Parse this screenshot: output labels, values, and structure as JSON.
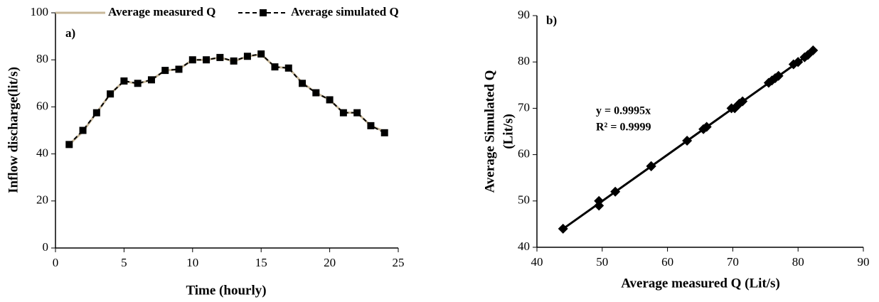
{
  "chart_data": [
    {
      "type": "line",
      "title": "a)",
      "x_label": "Time (hourly)",
      "y_label": "Inflow discharge(lit/s)",
      "x": [
        1,
        2,
        3,
        4,
        5,
        6,
        7,
        8,
        9,
        10,
        11,
        12,
        13,
        14,
        15,
        16,
        17,
        18,
        19,
        20,
        21,
        22,
        23,
        24
      ],
      "series": [
        {
          "name": "Average measured Q",
          "color": "#c8b89a",
          "values": [
            44,
            49.5,
            57.5,
            65.5,
            71,
            69.8,
            71.5,
            75.5,
            76,
            80,
            80,
            81,
            79.3,
            81.5,
            82.3,
            77,
            76.5,
            70.3,
            66,
            63,
            57.5,
            57.5,
            52,
            49.5
          ]
        },
        {
          "name": "Average simulated Q",
          "color": "#000000",
          "values": [
            44,
            50,
            57.5,
            65.5,
            71,
            70,
            71.5,
            75.5,
            76,
            80,
            80,
            81,
            79.5,
            81.5,
            82.5,
            77,
            76.5,
            70,
            66,
            63,
            57.5,
            57.5,
            52,
            49
          ]
        }
      ],
      "xlim": [
        0,
        25
      ],
      "xticks": [
        0,
        5,
        10,
        15,
        20,
        25
      ],
      "ylim": [
        0,
        100
      ],
      "yticks": [
        0,
        20,
        40,
        60,
        80,
        100
      ]
    },
    {
      "type": "scatter",
      "title": "b)",
      "x_label": "Average measured Q (Lit/s)",
      "y_label": [
        "Average Simulated Q",
        "(Lit/s)"
      ],
      "x": [
        44,
        49.5,
        57.5,
        65.5,
        71,
        69.8,
        71.5,
        75.5,
        76,
        80,
        80,
        81,
        79.3,
        81.5,
        82.3,
        77,
        76.5,
        70.3,
        66,
        63,
        57.5,
        57.5,
        52,
        49.5
      ],
      "values": [
        44,
        50,
        57.5,
        65.5,
        71,
        70,
        71.5,
        75.5,
        76,
        80,
        80,
        81,
        79.5,
        81.5,
        82.5,
        77,
        76.5,
        70,
        66,
        63,
        57.5,
        57.5,
        52,
        49
      ],
      "color": "#000000",
      "trendline": {
        "x": [
          44,
          82.5
        ],
        "y": [
          43.98,
          82.46
        ]
      },
      "annotations": [
        "y = 0.9995x",
        "R² = 0.9999"
      ],
      "xlim": [
        40,
        90
      ],
      "xticks": [
        40,
        50,
        60,
        70,
        80,
        90
      ],
      "ylim": [
        40,
        90
      ],
      "yticks": [
        40,
        50,
        60,
        70,
        80,
        90
      ]
    }
  ]
}
